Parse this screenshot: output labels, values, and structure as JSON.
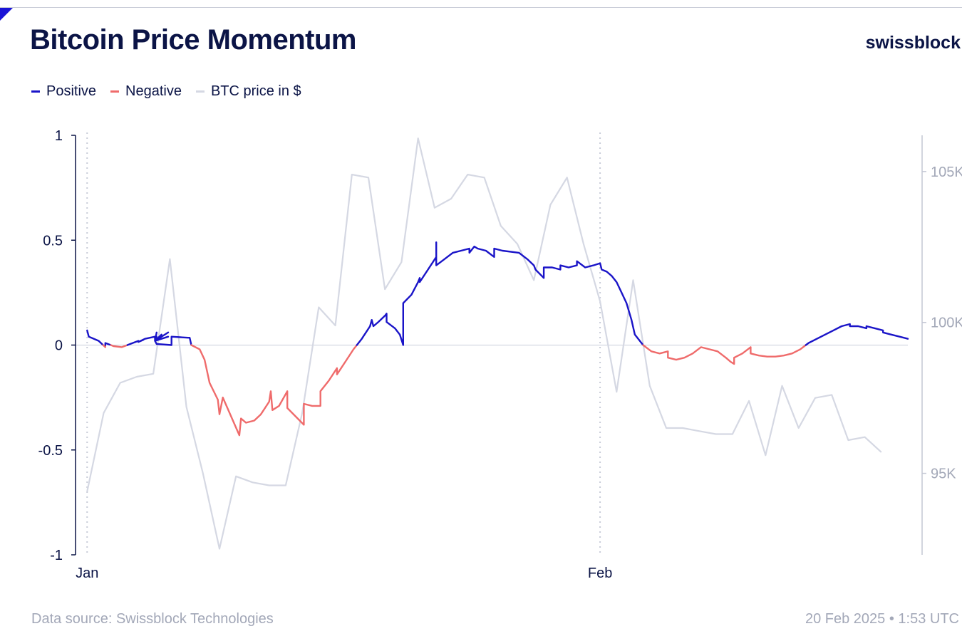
{
  "header": {
    "title": "Bitcoin Price Momentum",
    "brand": "swissblock"
  },
  "legend": {
    "items": [
      {
        "label": "Positive",
        "color": "#1a14c8"
      },
      {
        "label": "Negative",
        "color": "#ef6b6b"
      },
      {
        "label": "BTC price in $",
        "color": "#d5d8e3"
      }
    ]
  },
  "footer": {
    "source": "Data source: Swissblock Technologies",
    "timestamp": "20 Feb 2025 • 1:53 UTC"
  },
  "chart_data": {
    "type": "line",
    "x_unit": "days since Jan 1",
    "x_ticks": [
      {
        "label": "Jan",
        "x": 0
      },
      {
        "label": "Feb",
        "x": 31
      }
    ],
    "x_range": [
      -0.7,
      49.6
    ],
    "left_axis": {
      "ylim": [
        -1,
        1
      ],
      "ticks": [
        {
          "label": "1",
          "v": 1
        },
        {
          "label": "0.5",
          "v": 0.5
        },
        {
          "label": "0",
          "v": 0
        },
        {
          "label": "-0.5",
          "v": -0.5
        },
        {
          "label": "-1",
          "v": -1
        }
      ]
    },
    "right_axis": {
      "ylim": [
        92300,
        106200
      ],
      "ticks": [
        {
          "label": "105K",
          "v": 105000
        },
        {
          "label": "100K",
          "v": 100000
        },
        {
          "label": "95K",
          "v": 95000
        }
      ]
    },
    "colors": {
      "positive": "#1a14c8",
      "negative": "#ef6b6b",
      "price": "#d5d8e3"
    },
    "momentum": [
      [
        0,
        0.07
      ],
      [
        0.1,
        0.04
      ],
      [
        0.7,
        0.02
      ],
      [
        1.1,
        -0.01
      ],
      [
        1.1,
        0.01
      ],
      [
        1.6,
        -0.005
      ],
      [
        2.1,
        -0.01
      ],
      [
        2.6,
        0.005
      ],
      [
        3.1,
        0.02
      ],
      [
        3.1,
        0.015
      ],
      [
        3.4,
        0.025
      ],
      [
        3.1,
        0.015
      ],
      [
        3.5,
        0.03
      ],
      [
        4.1,
        0.04
      ],
      [
        4.1,
        0.02
      ],
      [
        4.9,
        0.04
      ],
      [
        4.1,
        0.02
      ],
      [
        4.2,
        0.03
      ],
      [
        4.1,
        0.02
      ],
      [
        4.2,
        0.04
      ],
      [
        4.1,
        0.02
      ],
      [
        4.5,
        0.05
      ],
      [
        4.1,
        0.02
      ],
      [
        4.2,
        0.06
      ],
      [
        4.1,
        0.02
      ],
      [
        4.9,
        0.06
      ],
      [
        4.1,
        0.02
      ],
      [
        4.2,
        0.005
      ],
      [
        5.1,
        0.0
      ],
      [
        5.1,
        0.04
      ],
      [
        6.1,
        0.035
      ],
      [
        6.2,
        0.035
      ],
      [
        6.3,
        0.0
      ],
      [
        6.8,
        -0.02
      ],
      [
        7.1,
        -0.07
      ],
      [
        7.4,
        -0.18
      ],
      [
        7.9,
        -0.26
      ],
      [
        8.0,
        -0.33
      ],
      [
        8.2,
        -0.25
      ],
      [
        9.2,
        -0.43
      ],
      [
        9.3,
        -0.35
      ],
      [
        9.6,
        -0.37
      ],
      [
        10.1,
        -0.36
      ],
      [
        10.5,
        -0.33
      ],
      [
        11.0,
        -0.27
      ],
      [
        11.1,
        -0.22
      ],
      [
        11.2,
        -0.31
      ],
      [
        11.6,
        -0.29
      ],
      [
        12.1,
        -0.22
      ],
      [
        12.1,
        -0.3
      ],
      [
        12.6,
        -0.34
      ],
      [
        13.1,
        -0.38
      ],
      [
        13.1,
        -0.28
      ],
      [
        13.6,
        -0.29
      ],
      [
        14.1,
        -0.29
      ],
      [
        14.1,
        -0.22
      ],
      [
        14.6,
        -0.17
      ],
      [
        15.1,
        -0.11
      ],
      [
        15.1,
        -0.14
      ],
      [
        15.6,
        -0.08
      ],
      [
        16.1,
        -0.02
      ],
      [
        16.6,
        0.03
      ],
      [
        17.1,
        0.09
      ],
      [
        17.2,
        0.12
      ],
      [
        17.3,
        0.09
      ],
      [
        17.6,
        0.11
      ],
      [
        18.0,
        0.14
      ],
      [
        18.1,
        0.15
      ],
      [
        18.1,
        0.11
      ],
      [
        18.6,
        0.08
      ],
      [
        18.9,
        0.05
      ],
      [
        19.1,
        0.0
      ],
      [
        19.1,
        0.2
      ],
      [
        19.6,
        0.24
      ],
      [
        20.0,
        0.3
      ],
      [
        20.1,
        0.32
      ],
      [
        20.1,
        0.3
      ],
      [
        20.6,
        0.36
      ],
      [
        21.1,
        0.42
      ],
      [
        21.1,
        0.49
      ],
      [
        21.1,
        0.38
      ],
      [
        21.6,
        0.41
      ],
      [
        22.1,
        0.44
      ],
      [
        22.6,
        0.45
      ],
      [
        23.1,
        0.46
      ],
      [
        23.1,
        0.44
      ],
      [
        23.4,
        0.47
      ],
      [
        23.6,
        0.46
      ],
      [
        24.1,
        0.45
      ],
      [
        24.6,
        0.42
      ],
      [
        24.6,
        0.46
      ],
      [
        25.1,
        0.45
      ],
      [
        26.1,
        0.44
      ],
      [
        26.6,
        0.41
      ],
      [
        27.0,
        0.38
      ],
      [
        27.1,
        0.36
      ],
      [
        27.6,
        0.32
      ],
      [
        27.6,
        0.37
      ],
      [
        28.1,
        0.37
      ],
      [
        28.6,
        0.36
      ],
      [
        28.6,
        0.38
      ],
      [
        29.1,
        0.37
      ],
      [
        29.6,
        0.38
      ],
      [
        29.6,
        0.4
      ],
      [
        30.1,
        0.37
      ],
      [
        30.6,
        0.38
      ],
      [
        31.0,
        0.39
      ],
      [
        31.1,
        0.36
      ],
      [
        31.4,
        0.35
      ],
      [
        31.7,
        0.33
      ],
      [
        32.0,
        0.3
      ],
      [
        32.3,
        0.25
      ],
      [
        32.6,
        0.2
      ],
      [
        32.9,
        0.12
      ],
      [
        33.1,
        0.05
      ],
      [
        33.6,
        0.0
      ],
      [
        34.1,
        -0.03
      ],
      [
        34.6,
        -0.04
      ],
      [
        35.1,
        -0.03
      ],
      [
        35.1,
        -0.06
      ],
      [
        35.6,
        -0.07
      ],
      [
        36.1,
        -0.06
      ],
      [
        36.6,
        -0.04
      ],
      [
        37.1,
        -0.01
      ],
      [
        37.6,
        -0.02
      ],
      [
        38.1,
        -0.03
      ],
      [
        38.6,
        -0.06
      ],
      [
        38.9,
        -0.08
      ],
      [
        39.1,
        -0.09
      ],
      [
        39.1,
        -0.06
      ],
      [
        39.6,
        -0.04
      ],
      [
        40.1,
        -0.01
      ],
      [
        40.1,
        -0.04
      ],
      [
        40.6,
        -0.05
      ],
      [
        41.1,
        -0.055
      ],
      [
        41.6,
        -0.055
      ],
      [
        42.1,
        -0.05
      ],
      [
        42.6,
        -0.04
      ],
      [
        43.1,
        -0.02
      ],
      [
        43.6,
        0.01
      ],
      [
        44.1,
        0.03
      ],
      [
        44.6,
        0.05
      ],
      [
        45.1,
        0.07
      ],
      [
        45.6,
        0.09
      ],
      [
        46.1,
        0.1
      ],
      [
        46.1,
        0.09
      ],
      [
        46.6,
        0.09
      ],
      [
        47.1,
        0.08
      ],
      [
        47.1,
        0.09
      ],
      [
        47.6,
        0.08
      ],
      [
        48.1,
        0.07
      ],
      [
        48.1,
        0.06
      ],
      [
        48.6,
        0.05
      ],
      [
        49.1,
        0.04
      ],
      [
        49.6,
        0.03
      ]
    ],
    "price": [
      [
        0,
        94400
      ],
      [
        1,
        97000
      ],
      [
        2,
        98000
      ],
      [
        3,
        98200
      ],
      [
        4,
        98300
      ],
      [
        5,
        102100
      ],
      [
        6,
        97200
      ],
      [
        7,
        95000
      ],
      [
        8,
        92500
      ],
      [
        9,
        94900
      ],
      [
        10,
        94700
      ],
      [
        11,
        94600
      ],
      [
        12,
        94600
      ],
      [
        13,
        97000
      ],
      [
        14,
        100500
      ],
      [
        15,
        99900
      ],
      [
        16,
        104900
      ],
      [
        17,
        104800
      ],
      [
        18,
        101100
      ],
      [
        19,
        102000
      ],
      [
        20,
        106100
      ],
      [
        21,
        103800
      ],
      [
        22,
        104100
      ],
      [
        23,
        104900
      ],
      [
        24,
        104800
      ],
      [
        25,
        103200
      ],
      [
        26,
        102600
      ],
      [
        27,
        101400
      ],
      [
        28,
        103900
      ],
      [
        29,
        104800
      ],
      [
        30,
        102600
      ],
      [
        31,
        100700
      ],
      [
        32,
        97700
      ],
      [
        33,
        101400
      ],
      [
        34,
        97900
      ],
      [
        35,
        96500
      ],
      [
        36,
        96500
      ],
      [
        37,
        96400
      ],
      [
        38,
        96300
      ],
      [
        39,
        96300
      ],
      [
        40,
        97400
      ],
      [
        41,
        95600
      ],
      [
        42,
        97900
      ],
      [
        43,
        96500
      ],
      [
        44,
        97500
      ],
      [
        45,
        97600
      ],
      [
        46,
        96100
      ],
      [
        47,
        96200
      ],
      [
        48,
        95700
      ]
    ]
  }
}
